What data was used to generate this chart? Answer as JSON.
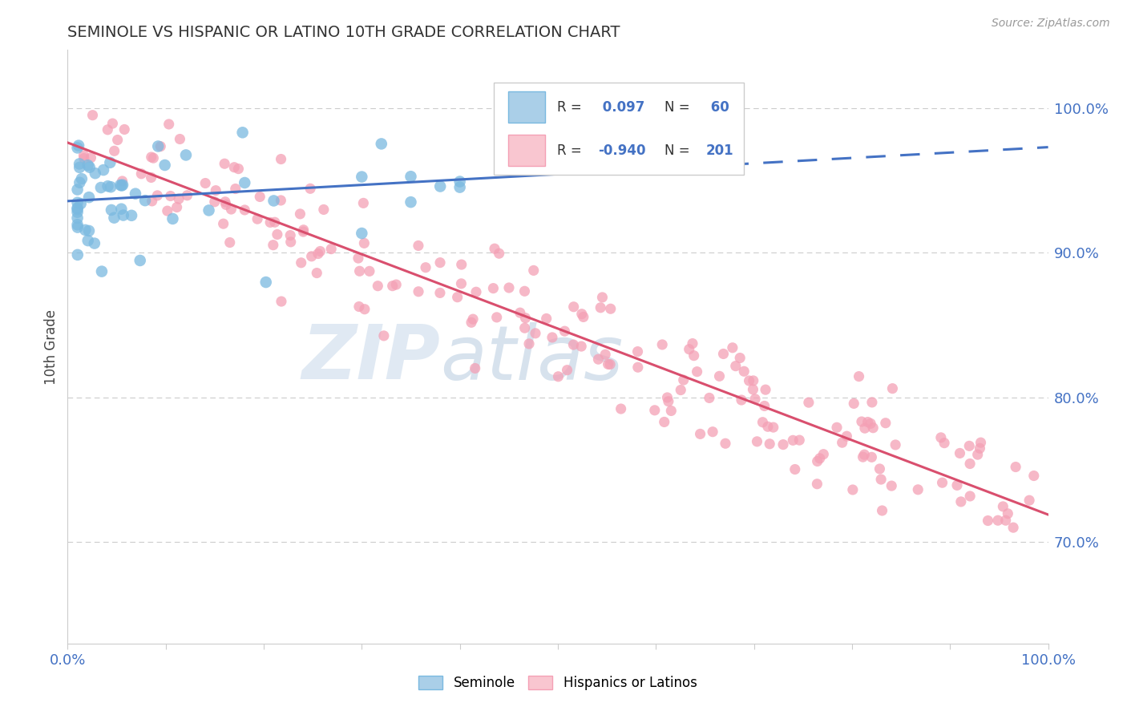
{
  "title": "SEMINOLE VS HISPANIC OR LATINO 10TH GRADE CORRELATION CHART",
  "source_text": "Source: ZipAtlas.com",
  "ylabel": "10th Grade",
  "legend_r1": "0.097",
  "legend_n1": "60",
  "legend_r2": "-0.940",
  "legend_n2": "201",
  "blue_color": "#7ab9e0",
  "pink_color": "#f4a0b5",
  "blue_fill": "#aacfe8",
  "pink_fill": "#f9c6d0",
  "trend_blue_color": "#4472c4",
  "trend_pink_color": "#d94f6e",
  "grid_color": "#cccccc",
  "background_color": "#ffffff",
  "title_color": "#333333",
  "axis_label_color": "#4472c4",
  "xlim": [
    0.0,
    1.0
  ],
  "ylim": [
    0.63,
    1.04
  ],
  "yticks": [
    0.7,
    0.8,
    0.9,
    1.0
  ],
  "ytick_labels": [
    "70.0%",
    "80.0%",
    "90.0%",
    "100.0%"
  ],
  "xticks": [
    0.0,
    0.1,
    0.2,
    0.3,
    0.4,
    0.5,
    0.6,
    0.7,
    0.8,
    0.9,
    1.0
  ],
  "blue_scatter_seed": 42,
  "pink_scatter_seed": 99,
  "watermark": "ZIPatlas",
  "watermark_zip_color": "#c5d5e8",
  "watermark_atlas_color": "#9fb8d8"
}
